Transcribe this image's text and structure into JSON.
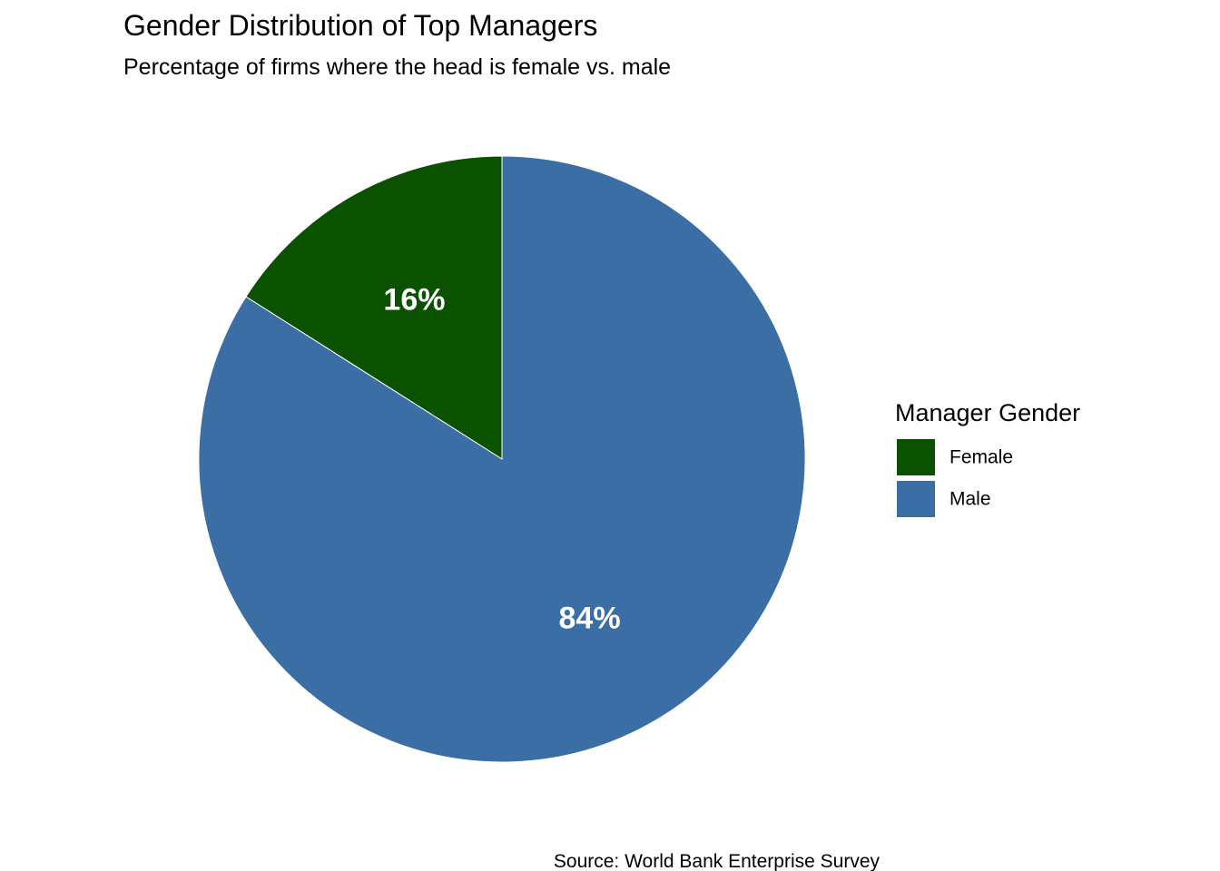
{
  "chart_data": {
    "type": "pie",
    "title": "Gender Distribution of Top Managers",
    "subtitle": "Percentage of firms where the head is female vs. male",
    "caption": "Source: World Bank Enterprise Survey",
    "start": "12 o'clock",
    "direction": "counterclockwise",
    "legend": {
      "title": "Manager Gender",
      "placement": "right"
    },
    "slices": [
      {
        "label": "Female",
        "value": 16,
        "display": "16%",
        "color": "#0b5200"
      },
      {
        "label": "Male",
        "value": 84,
        "display": "84%",
        "color": "#3b6ea5"
      }
    ]
  }
}
